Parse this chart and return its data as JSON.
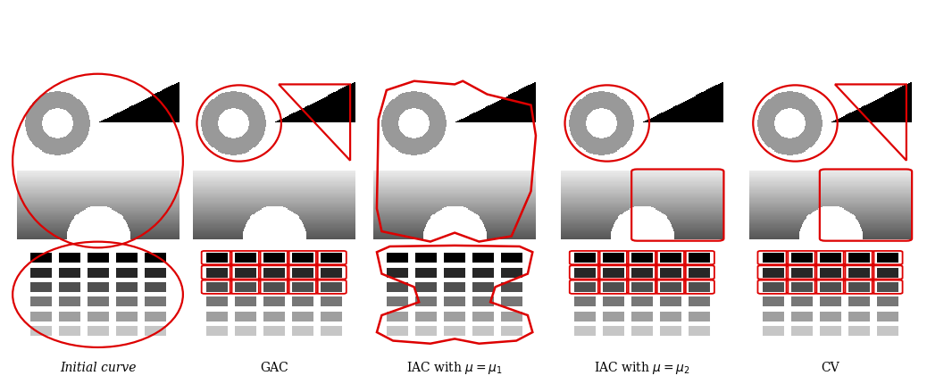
{
  "fig_width": 10.38,
  "fig_height": 4.31,
  "background": "#ffffff",
  "red": "#dd0000",
  "labels": [
    "Initial curve",
    "GAC",
    "IAC with $\\mu = \\mu_1$",
    "IAC with $\\mu = \\mu_2$",
    "CV"
  ],
  "label_fontsize": 10
}
